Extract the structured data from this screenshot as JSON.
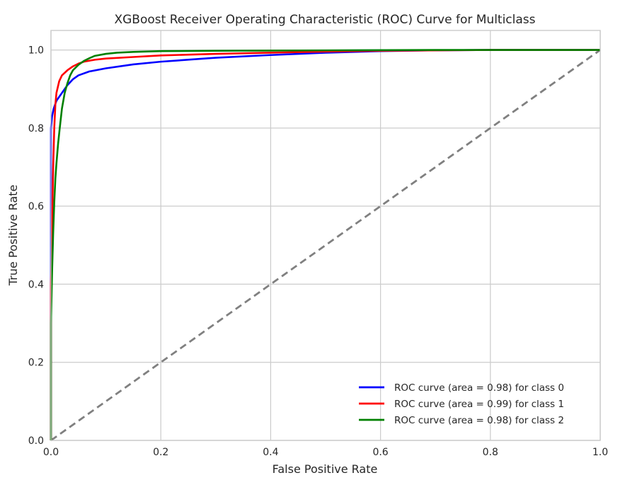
{
  "chart_data": {
    "type": "line",
    "title": "XGBoost Receiver Operating Characteristic (ROC) Curve for Multiclass",
    "xlabel": "False Positive Rate",
    "ylabel": "True Positive Rate",
    "xlim": [
      0,
      1
    ],
    "ylim": [
      0,
      1.05
    ],
    "xticks": [
      "0.0",
      "0.2",
      "0.4",
      "0.6",
      "0.8",
      "1.0"
    ],
    "yticks": [
      "0.0",
      "0.2",
      "0.4",
      "0.6",
      "0.8",
      "1.0"
    ],
    "grid": true,
    "legend_position": "bottom-right",
    "series": [
      {
        "name": "ROC curve (area = 0.98) for class 0",
        "color": "#0000ff",
        "x": [
          0,
          0,
          0.002,
          0.005,
          0.01,
          0.02,
          0.03,
          0.04,
          0.05,
          0.07,
          0.1,
          0.15,
          0.2,
          0.25,
          0.3,
          0.4,
          0.5,
          0.6,
          0.7,
          0.8,
          0.9,
          1.0
        ],
        "y": [
          0,
          0.8,
          0.83,
          0.85,
          0.87,
          0.89,
          0.91,
          0.925,
          0.935,
          0.945,
          0.953,
          0.963,
          0.97,
          0.975,
          0.98,
          0.987,
          0.993,
          0.997,
          0.999,
          1.0,
          1.0,
          1.0
        ]
      },
      {
        "name": "ROC curve (area = 0.99) for class 1",
        "color": "#ff0000",
        "x": [
          0,
          0,
          0.002,
          0.004,
          0.006,
          0.008,
          0.01,
          0.015,
          0.02,
          0.03,
          0.04,
          0.05,
          0.06,
          0.08,
          0.1,
          0.15,
          0.2,
          0.3,
          0.4,
          0.5,
          0.6,
          0.8,
          1.0
        ],
        "y": [
          0,
          0.4,
          0.55,
          0.7,
          0.8,
          0.86,
          0.89,
          0.92,
          0.935,
          0.948,
          0.958,
          0.965,
          0.97,
          0.975,
          0.978,
          0.982,
          0.986,
          0.99,
          0.993,
          0.996,
          0.998,
          1.0,
          1.0
        ]
      },
      {
        "name": "ROC curve (area = 0.98) for class 2",
        "color": "#008000",
        "x": [
          0,
          0,
          0.002,
          0.004,
          0.006,
          0.008,
          0.01,
          0.013,
          0.016,
          0.02,
          0.025,
          0.03,
          0.035,
          0.04,
          0.05,
          0.06,
          0.07,
          0.08,
          0.1,
          0.12,
          0.15,
          0.2,
          0.3,
          0.5,
          0.7,
          1.0
        ],
        "y": [
          0,
          0.3,
          0.43,
          0.53,
          0.61,
          0.67,
          0.71,
          0.76,
          0.8,
          0.85,
          0.89,
          0.915,
          0.935,
          0.948,
          0.962,
          0.972,
          0.979,
          0.985,
          0.99,
          0.993,
          0.995,
          0.997,
          0.998,
          0.999,
          1.0,
          1.0
        ]
      }
    ],
    "reference_line": {
      "color": "#808080",
      "x": [
        0,
        1
      ],
      "y": [
        0,
        1
      ]
    }
  }
}
